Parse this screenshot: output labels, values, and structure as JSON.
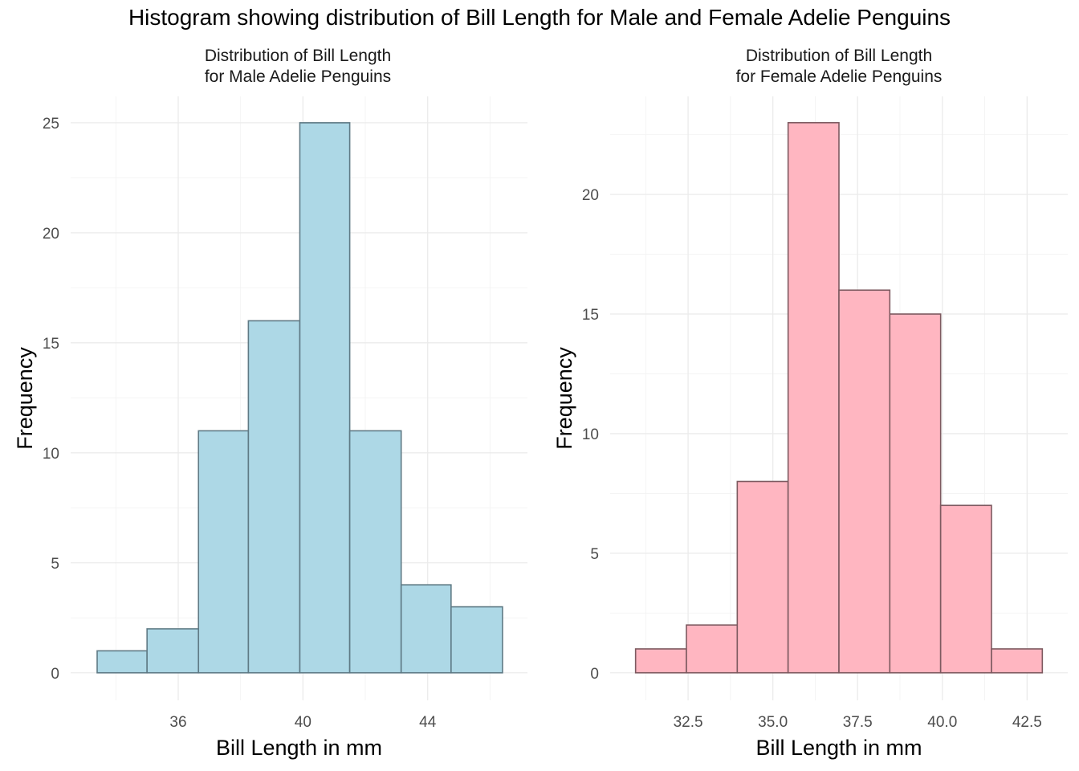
{
  "title": "Histogram showing distribution of Bill Length for Male and Female Adelie Penguins",
  "chart_data": [
    {
      "type": "bar",
      "title_lines": [
        "Distribution of Bill Length",
        "for Male Adelie Penguins"
      ],
      "xlabel": "Bill Length in mm",
      "ylabel": "Frequency",
      "fill": "#add8e6",
      "stroke": "#5f7a85",
      "bins": [
        {
          "x0": 33.4,
          "x1": 35.0,
          "count": 1
        },
        {
          "x0": 35.0,
          "x1": 36.65,
          "count": 2
        },
        {
          "x0": 36.65,
          "x1": 38.25,
          "count": 11
        },
        {
          "x0": 38.25,
          "x1": 39.9,
          "count": 16
        },
        {
          "x0": 39.9,
          "x1": 41.5,
          "count": 25
        },
        {
          "x0": 41.5,
          "x1": 43.15,
          "count": 11
        },
        {
          "x0": 43.15,
          "x1": 44.75,
          "count": 4
        },
        {
          "x0": 44.75,
          "x1": 46.4,
          "count": 3
        }
      ],
      "xlim": [
        32.55,
        47.2
      ],
      "ylim": [
        -1.25,
        26.2
      ],
      "x_ticks": [
        36,
        40,
        44
      ],
      "x_tick_labels": [
        "36",
        "40",
        "44"
      ],
      "y_ticks": [
        0,
        5,
        10,
        15,
        20,
        25
      ],
      "y_tick_labels": [
        "0",
        "5",
        "10",
        "15",
        "20",
        "25"
      ],
      "grid": true
    },
    {
      "type": "bar",
      "title_lines": [
        "Distribution of Bill Length",
        "for Female Adelie Penguins"
      ],
      "xlabel": "Bill Length in mm",
      "ylabel": "Frequency",
      "fill": "#ffb6c1",
      "stroke": "#7d5a60",
      "bins": [
        {
          "x0": 30.95,
          "x1": 32.45,
          "count": 1
        },
        {
          "x0": 32.45,
          "x1": 33.95,
          "count": 2
        },
        {
          "x0": 33.95,
          "x1": 35.45,
          "count": 8
        },
        {
          "x0": 35.45,
          "x1": 36.95,
          "count": 23
        },
        {
          "x0": 36.95,
          "x1": 38.45,
          "count": 16
        },
        {
          "x0": 38.45,
          "x1": 39.95,
          "count": 15
        },
        {
          "x0": 39.95,
          "x1": 41.45,
          "count": 7
        },
        {
          "x0": 41.45,
          "x1": 42.95,
          "count": 1
        }
      ],
      "xlim": [
        30.2,
        43.7
      ],
      "ylim": [
        -1.15,
        24.1
      ],
      "x_ticks": [
        32.5,
        35.0,
        37.5,
        40.0,
        42.5
      ],
      "x_tick_labels": [
        "32.5",
        "35.0",
        "37.5",
        "40.0",
        "42.5"
      ],
      "y_ticks": [
        0,
        5,
        10,
        15,
        20
      ],
      "y_tick_labels": [
        "0",
        "5",
        "10",
        "15",
        "20"
      ],
      "grid": true
    }
  ]
}
